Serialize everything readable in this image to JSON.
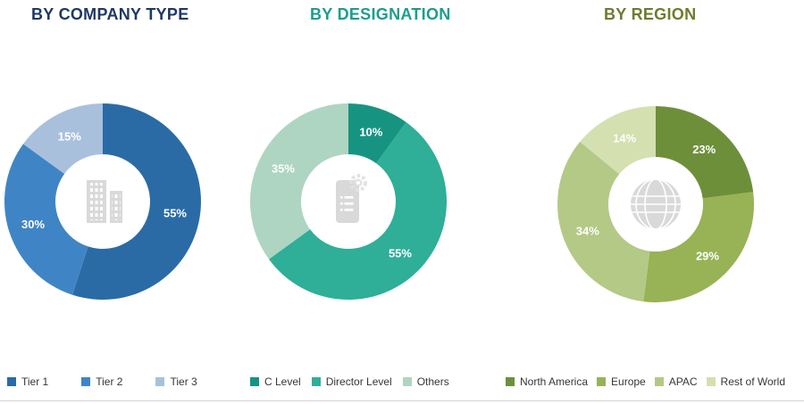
{
  "chart_data": [
    {
      "type": "pie",
      "subtype": "donut",
      "title": "BY COMPANY TYPE",
      "title_color": "#1f3864",
      "center_icon": "building-icon",
      "legend_position": "bottom",
      "categories": [
        "Tier 1",
        "Tier 2",
        "Tier 3"
      ],
      "values": [
        55,
        30,
        15
      ],
      "labels": [
        "55%",
        "30%",
        "15%"
      ],
      "colors": [
        "#2a6ba6",
        "#3f85c5",
        "#a9c0dd"
      ],
      "start_angle_deg": 0
    },
    {
      "type": "pie",
      "subtype": "donut",
      "title": "BY DESIGNATION",
      "title_color": "#1b9e8b",
      "center_icon": "clipboard-gear-icon",
      "legend_position": "bottom",
      "categories": [
        "C Level",
        "Director Level",
        "Others"
      ],
      "values": [
        10,
        55,
        35
      ],
      "labels": [
        "10%",
        "55%",
        "35%"
      ],
      "colors": [
        "#179481",
        "#2fae98",
        "#aed5c2"
      ],
      "start_angle_deg": 0
    },
    {
      "type": "pie",
      "subtype": "donut",
      "title": "BY REGION",
      "title_color": "#6d7c2d",
      "center_icon": "globe-icon",
      "legend_position": "bottom",
      "categories": [
        "North America",
        "Europe",
        "APAC",
        "Rest of World"
      ],
      "values": [
        23,
        29,
        34,
        14
      ],
      "labels": [
        "23%",
        "29%",
        "34%",
        "14%"
      ],
      "colors": [
        "#6d8f3a",
        "#97b355",
        "#b4c986",
        "#d4e0af"
      ],
      "start_angle_deg": 0
    }
  ]
}
